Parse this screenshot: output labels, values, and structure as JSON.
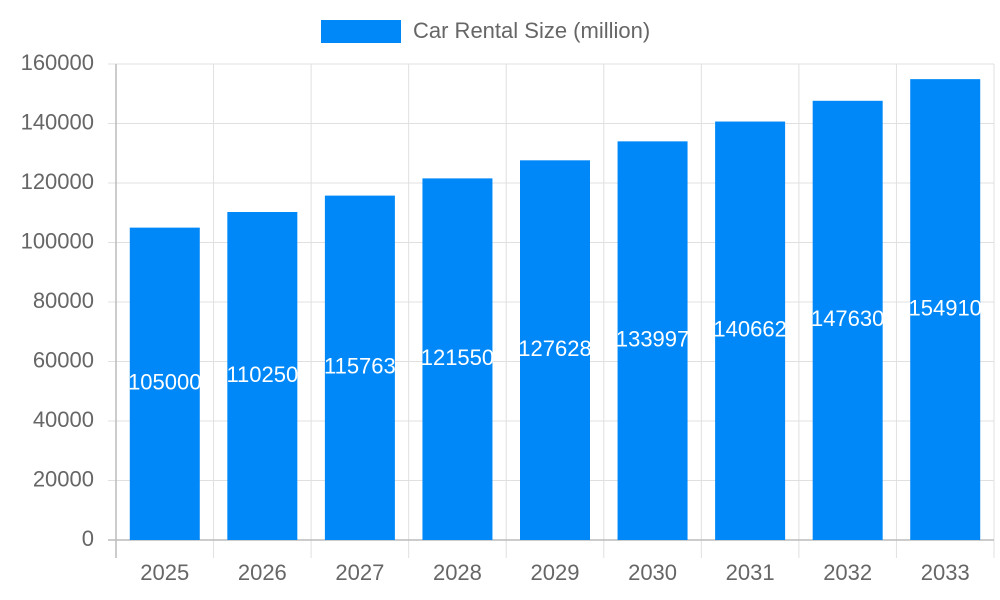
{
  "chart_data": {
    "type": "bar",
    "categories": [
      "2025",
      "2026",
      "2027",
      "2028",
      "2029",
      "2030",
      "2031",
      "2032",
      "2033"
    ],
    "series": [
      {
        "name": "Car Rental Size (million)",
        "color": "#0088f8",
        "values": [
          105000,
          110250,
          115763,
          121550,
          127628,
          133997,
          140662,
          147630,
          154910
        ]
      }
    ],
    "ylim": [
      0,
      160000
    ],
    "yticks": [
      0,
      20000,
      40000,
      60000,
      80000,
      100000,
      120000,
      140000,
      160000
    ],
    "grid": true,
    "legend": "top",
    "data_labels": true
  }
}
